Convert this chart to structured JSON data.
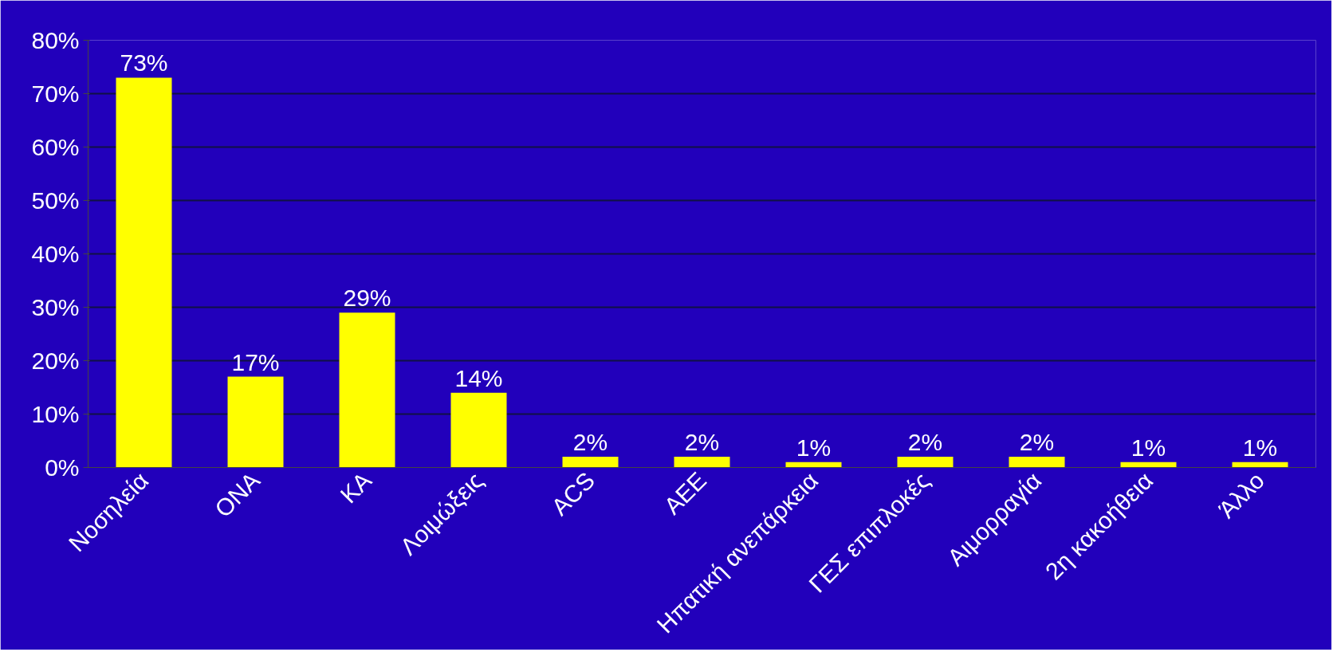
{
  "chart_data": {
    "type": "bar",
    "categories": [
      "Νοσηλεία",
      "ΟΝΑ",
      "ΚΑ",
      "Λοιμώξεις",
      "ACS",
      "ΑΕΕ",
      "Ηπατική ανεπάρκεια",
      "ΓΕΣ επιπλοκές",
      "Αιμορραγία",
      "2η κακοήθεια",
      "Άλλο"
    ],
    "values": [
      73,
      17,
      29,
      14,
      2,
      2,
      1,
      2,
      2,
      1,
      1
    ],
    "value_labels": [
      "73%",
      "17%",
      "29%",
      "14%",
      "2%",
      "2%",
      "1%",
      "2%",
      "2%",
      "1%",
      "1%"
    ],
    "color": "#ffff00",
    "ylim": [
      0,
      80
    ],
    "yticks": [
      {
        "value": 0,
        "label": "0%"
      },
      {
        "value": 10,
        "label": "10%"
      },
      {
        "value": 20,
        "label": "20%"
      },
      {
        "value": 30,
        "label": "30%"
      },
      {
        "value": 40,
        "label": "40%"
      },
      {
        "value": 50,
        "label": "50%"
      },
      {
        "value": 60,
        "label": "60%"
      },
      {
        "value": 70,
        "label": "70%"
      },
      {
        "value": 80,
        "label": "80%"
      }
    ],
    "grid": "y"
  }
}
